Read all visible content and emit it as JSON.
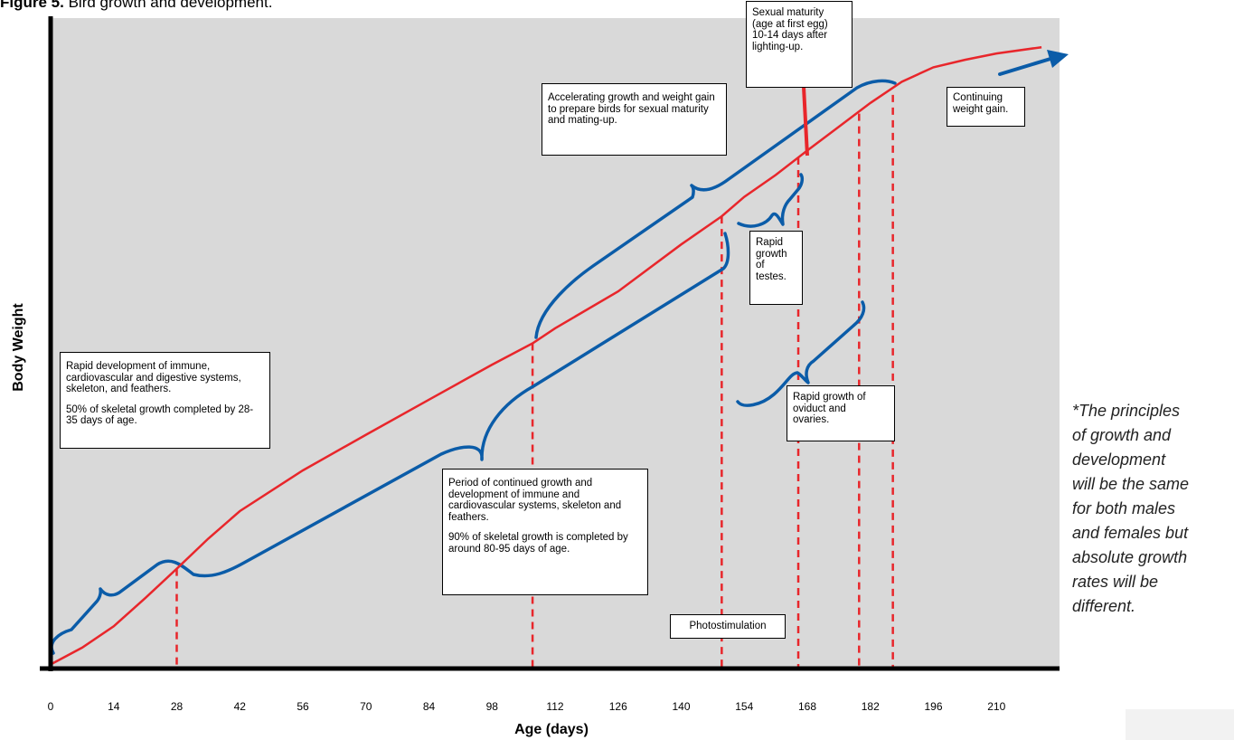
{
  "figure": {
    "label": "Figure 5.",
    "caption": " Bird growth and development."
  },
  "chart_data": {
    "type": "line",
    "xlabel": "Age (days)",
    "ylabel": "Body Weight",
    "xlim": [
      0,
      224
    ],
    "ylim": [
      0,
      100
    ],
    "x_ticks": [
      0,
      14,
      28,
      42,
      56,
      70,
      84,
      98,
      112,
      126,
      140,
      154,
      168,
      182,
      196,
      210
    ],
    "colors": {
      "growth_line": "#e8262b",
      "braces": "#0b5ca8",
      "plot_bg": "#d9d9d9",
      "markers": "#e8262b"
    },
    "series": [
      {
        "x": [
          0,
          7,
          14,
          21,
          28,
          35,
          42,
          56,
          70,
          84,
          98,
          107,
          112,
          126,
          140,
          149,
          154,
          161,
          168,
          175,
          182,
          189,
          196,
          203,
          210,
          220
        ],
        "y": [
          0.5,
          3.2,
          6.6,
          11.1,
          15.8,
          20.6,
          25.0,
          31.5,
          37.2,
          42.8,
          48.4,
          51.8,
          54.2,
          60.1,
          67.6,
          72.1,
          75.2,
          78.7,
          82.6,
          86.4,
          90.2,
          93.6,
          95.9,
          97.1,
          98.1,
          99.1
        ]
      }
    ],
    "milestones": [
      {
        "x": 28,
        "y": 15.8
      },
      {
        "x": 107,
        "y": 51.8
      },
      {
        "x": 149,
        "y": 72.1,
        "label": "Photostimulation"
      },
      {
        "x": 166,
        "y": 81.5
      },
      {
        "x": 179.5,
        "y": 88.5
      },
      {
        "x": 187,
        "y": 91.5
      }
    ],
    "annotations": {
      "immune": {
        "p1": "Rapid development of immune, cardiovascular and digestive systems, skeleton, and feathers.",
        "p2": "50% of skeletal growth completed by 28-35 days of age."
      },
      "continued": {
        "p1": "Period of continued growth and development of immune and cardiovascular systems, skeleton and feathers.",
        "p2": "90% of skeletal growth is completed by around 80-95 days of age."
      },
      "accelerating": "Accelerating growth and weight gain to prepare birds for sexual maturity and mating-up.",
      "sexual_maturity": "Sexual maturity\n(age at first egg)\n10-14 days after\nlighting-up.",
      "continuing": "Continuing\nweight gain.",
      "testes": "Rapid\ngrowth\nof\ntestes.",
      "oviduct": "Rapid growth of\noviduct and\novaries.",
      "photostimulation": "Photostimulation"
    }
  },
  "side_note": "*The principles\nof growth and\ndevelopment\nwill be the same\nfor both males\nand females but\nabsolute growth\nrates will be\ndifferent."
}
